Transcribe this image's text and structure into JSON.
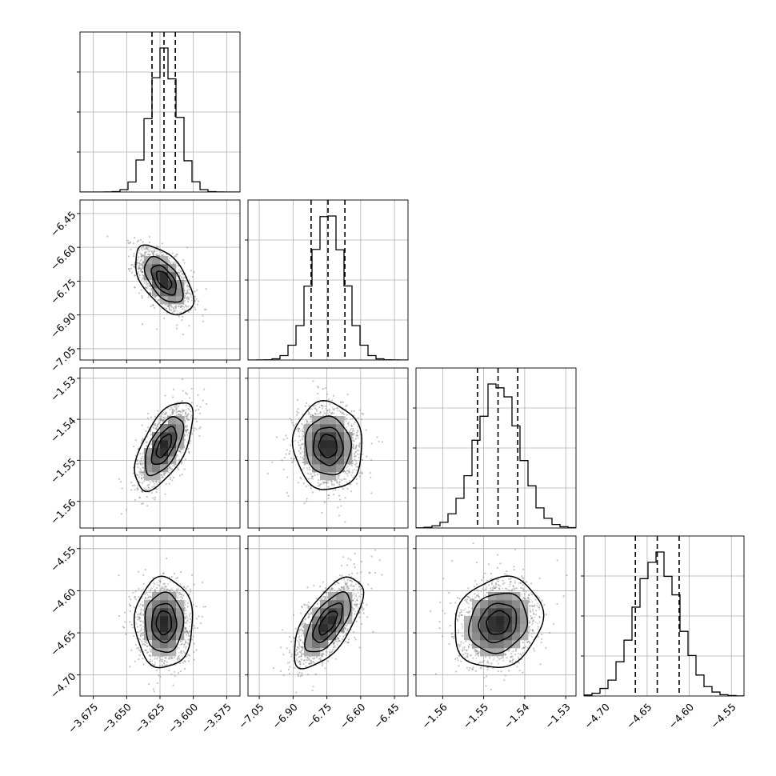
{
  "chart_data": {
    "type": "corner",
    "title": "",
    "parameters": [
      {
        "index": 0,
        "mean": -3.622,
        "std": 0.0105,
        "range": [
          -3.685,
          -3.565
        ],
        "ticks": [
          -3.675,
          -3.65,
          -3.625,
          -3.6,
          -3.575
        ],
        "tick_labels": [
          "−3.675",
          "−3.650",
          "−3.625",
          "−3.600",
          "−3.575"
        ],
        "quantiles": [
          -3.631,
          -3.622,
          -3.6135
        ]
      },
      {
        "index": 1,
        "mean": -6.745,
        "std": 0.074,
        "range": [
          -7.1,
          -6.39
        ],
        "ticks": [
          -7.05,
          -6.9,
          -6.75,
          -6.6,
          -6.45
        ],
        "tick_labels": [
          "−7.05",
          "−6.90",
          "−6.75",
          "−6.60",
          "−6.45"
        ],
        "quantiles": [
          -6.82,
          -6.745,
          -6.67
        ]
      },
      {
        "index": 2,
        "mean": -1.5465,
        "std": 0.0052,
        "range": [
          -1.5665,
          -1.5275
        ],
        "ticks": [
          -1.56,
          -1.55,
          -1.54,
          -1.53
        ],
        "tick_labels": [
          "−1.56",
          "−1.55",
          "−1.54",
          "−1.53"
        ],
        "quantiles": [
          -1.5515,
          -1.5465,
          -1.5417
        ]
      },
      {
        "index": 3,
        "mean": -4.638,
        "std": 0.026,
        "range": [
          -4.725,
          -4.535
        ],
        "ticks": [
          -4.7,
          -4.65,
          -4.6,
          -4.55
        ],
        "tick_labels": [
          "−4.70",
          "−4.65",
          "−4.60",
          "−4.55"
        ],
        "quantiles": [
          -4.664,
          -4.638,
          -4.612
        ]
      }
    ],
    "correlations": [
      {
        "pair": [
          0,
          1
        ],
        "rho": -0.55
      },
      {
        "pair": [
          0,
          2
        ],
        "rho": 0.6
      },
      {
        "pair": [
          1,
          2
        ],
        "rho": -0.05
      },
      {
        "pair": [
          0,
          3
        ],
        "rho": 0.0
      },
      {
        "pair": [
          1,
          3
        ],
        "rho": 0.65
      },
      {
        "pair": [
          2,
          3
        ],
        "rho": 0.15
      }
    ],
    "histogram_bins": 20,
    "contour_levels_sigma": [
      0.5,
      1.0,
      1.5,
      2.0
    ],
    "grid": true,
    "colors": {
      "line": "#000000",
      "density": "#000000",
      "points": "#7f7f7f",
      "grid": "#b0b0b0"
    }
  }
}
